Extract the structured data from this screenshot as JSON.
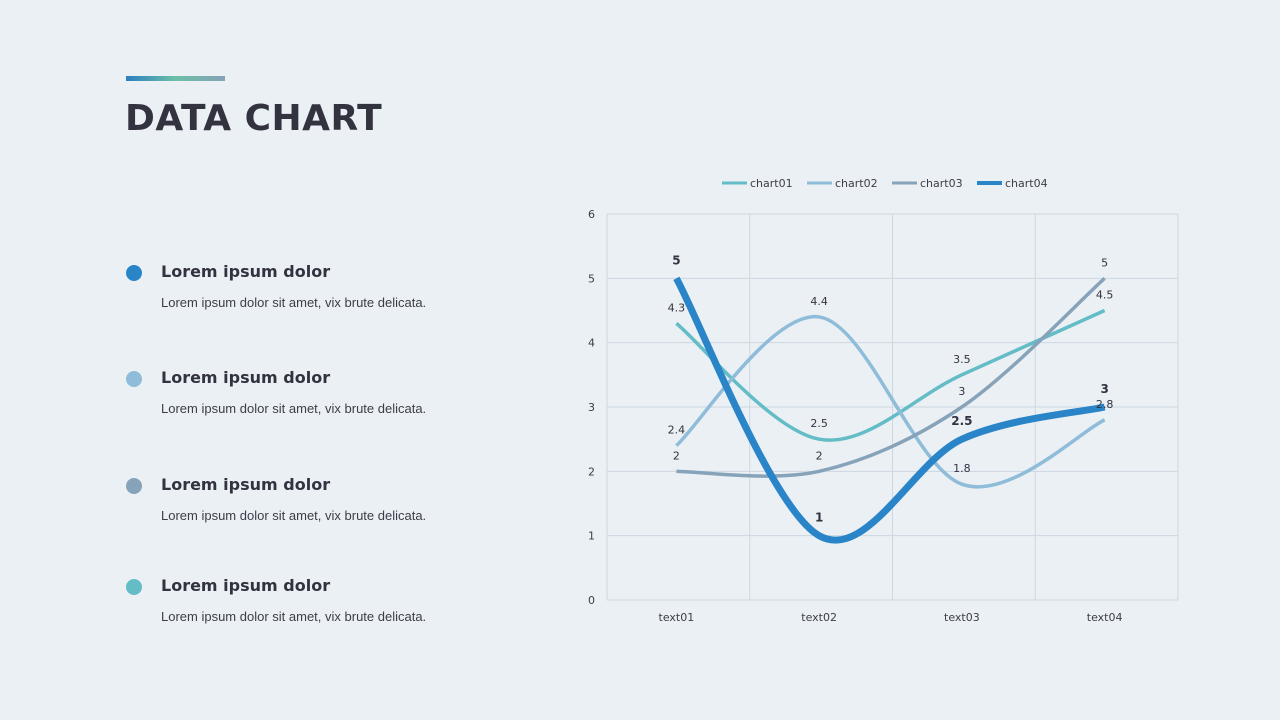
{
  "header": {
    "title": "DATA CHART"
  },
  "items": [
    {
      "title": "Lorem ipsum dolor",
      "description": "Lorem ipsum dolor sit amet, vix brute delicata.",
      "color": "#2a85c8"
    },
    {
      "title": "Lorem ipsum dolor",
      "description": "Lorem ipsum dolor sit amet, vix brute delicata.",
      "color": "#8fbcd8"
    },
    {
      "title": "Lorem ipsum dolor",
      "description": "Lorem ipsum dolor sit amet, vix brute delicata.",
      "color": "#86a3b9"
    },
    {
      "title": "Lorem ipsum dolor",
      "description": "Lorem ipsum dolor sit amet, vix brute delicata.",
      "color": "#64bcc6"
    }
  ],
  "chart_data": {
    "type": "line",
    "smooth": true,
    "title": "",
    "xlabel": "",
    "ylabel": "",
    "categories": [
      "text01",
      "text02",
      "text03",
      "text04"
    ],
    "ylim": [
      0,
      6
    ],
    "yticks": [
      0,
      1,
      2,
      3,
      4,
      5,
      6
    ],
    "grid": true,
    "legend_position": "top",
    "series": [
      {
        "name": "chart01",
        "values": [
          4.3,
          2.5,
          3.5,
          4.5
        ],
        "color": "#64bcc6",
        "width": 3.5,
        "bold_labels": false
      },
      {
        "name": "chart02",
        "values": [
          2.4,
          4.4,
          1.8,
          2.8
        ],
        "color": "#8fbcd8",
        "width": 3.5,
        "bold_labels": false
      },
      {
        "name": "chart03",
        "values": [
          2,
          2,
          3,
          5
        ],
        "color": "#86a3b9",
        "width": 3.5,
        "bold_labels": false
      },
      {
        "name": "chart04",
        "values": [
          5,
          1,
          2.5,
          3
        ],
        "color": "#2a85c8",
        "width": 7,
        "bold_labels": true
      }
    ]
  }
}
